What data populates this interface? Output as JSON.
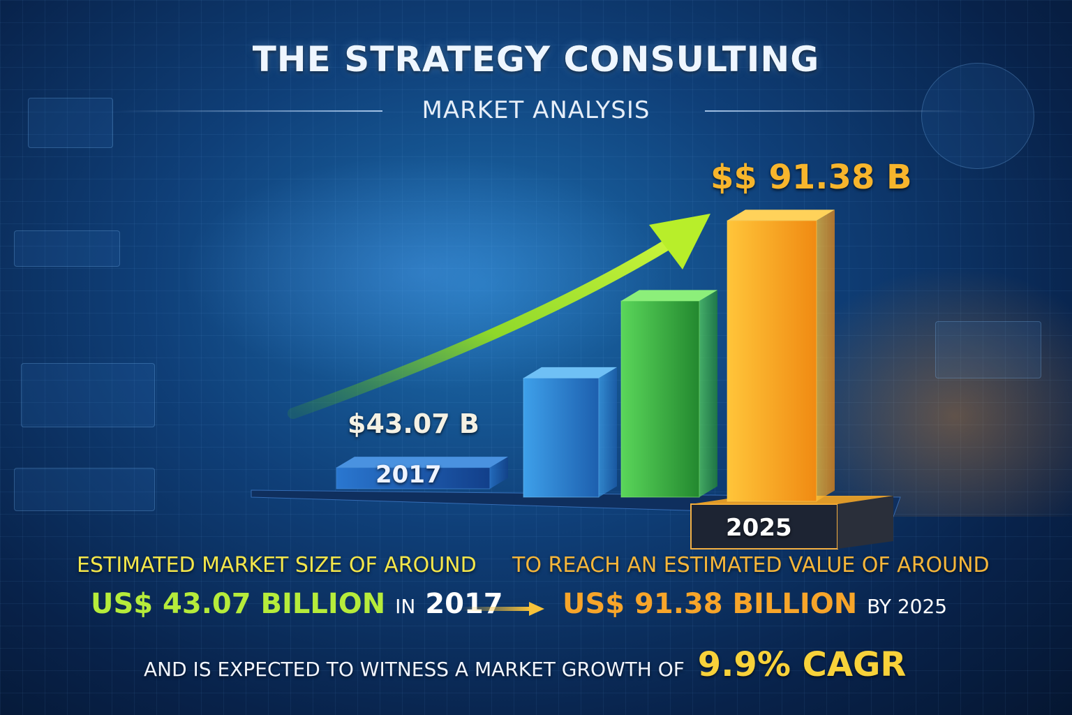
{
  "header": {
    "title": "THE STRATEGY CONSULTING",
    "subtitle": "MARKET ANALYSIS"
  },
  "chart_data": {
    "type": "bar",
    "categories": [
      "2017",
      "",
      "",
      "2025"
    ],
    "values": [
      43.07,
      null,
      null,
      91.38
    ],
    "value_labels": [
      "$43.07 B",
      "",
      "",
      "$$ 91.38 B"
    ],
    "category_labels_shown": [
      "2017",
      "2025"
    ],
    "trend_arrow": true
  },
  "captions": {
    "left_intro": "ESTIMATED MARKET SIZE OF AROUND",
    "left_value": "US$ 43.07 BILLION",
    "left_connector": "IN",
    "left_year": "2017",
    "right_intro": "TO REACH AN ESTIMATED VALUE OF AROUND",
    "right_value": "US$ 91.38 BILLION",
    "right_connector": "BY 2025",
    "growth_text": "AND IS EXPECTED TO WITNESS A MARKET GROWTH OF",
    "growth_value": "9.9% CAGR"
  },
  "colors": {
    "bar_2017": "#1f5fb8",
    "bar_2": "#2f86d6",
    "bar_3": "#3fbf4a",
    "bar_2025": "#f5a623",
    "arrow": "#a6e82a",
    "value_2025": "#f7b52c"
  }
}
